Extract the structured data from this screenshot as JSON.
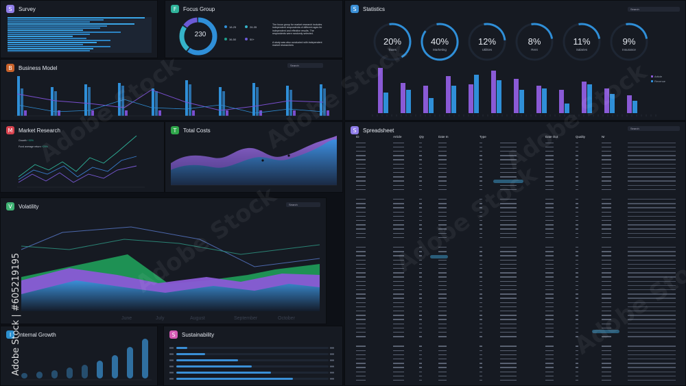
{
  "panels": {
    "survey": {
      "letter": "S",
      "title": "Survey",
      "color": "#8f7de8"
    },
    "focus": {
      "letter": "F",
      "title": "Focus Group",
      "color": "#2fb39a",
      "center_value": "230",
      "legend": [
        "18-25",
        "26-35",
        "36-50",
        "50+"
      ],
      "note1": "The focus group for market research includes independent respondents of different ages for independent and effective results. The respondents were randomly selected.",
      "note2": "A study was also conducted with independent market researchers"
    },
    "business": {
      "letter": "B",
      "title": "Business Model",
      "color": "#c9622a",
      "search": "Search"
    },
    "market": {
      "letter": "M",
      "title": "Market Research",
      "color": "#d9434f",
      "legend": [
        "Growth",
        "Fund average return"
      ],
      "legend_values": [
        "+30%",
        "+25%"
      ]
    },
    "total": {
      "letter": "T",
      "title": "Total Costs",
      "color": "#2fa64a"
    },
    "volatility": {
      "letter": "V",
      "title": "Volatility",
      "color": "#3fb374",
      "search": "Search",
      "months": [
        "June",
        "July",
        "August",
        "September",
        "October"
      ]
    },
    "internal": {
      "letter": "I",
      "title": "Internal Growth",
      "color": "#2b8fcf"
    },
    "sustain": {
      "letter": "S",
      "title": "Sustainability",
      "color": "#d35bb4"
    },
    "statistics": {
      "letter": "S",
      "title": "Statistics",
      "color": "#3a8fd6",
      "search": "Search",
      "legend": [
        "Article",
        "Revenue"
      ]
    },
    "spreadsheet": {
      "letter": "S",
      "title": "Spreadsheet",
      "color": "#8f7de8",
      "search": "Search",
      "columns": [
        "ID",
        "Article",
        "Qty",
        "Date In",
        "Type",
        "",
        "Date Out",
        "Quality",
        "Nr"
      ]
    }
  },
  "stats_rings": [
    {
      "value": "20%",
      "label": "Taxes",
      "pct": 0.2
    },
    {
      "value": "40%",
      "label": "Marketing",
      "pct": 0.4
    },
    {
      "value": "12%",
      "label": "Utilities",
      "pct": 0.12
    },
    {
      "value": "8%",
      "label": "Rent",
      "pct": 0.08
    },
    {
      "value": "11%",
      "label": "Salaries",
      "pct": 0.11
    },
    {
      "value": "9%",
      "label": "Insurance",
      "pct": 0.09
    }
  ],
  "watermark": {
    "vertical": "Adobe Stock | #605219195",
    "text": "Adobe Stock"
  },
  "colors": {
    "purple": "#8a5ad6",
    "blue": "#2f8fd8",
    "green": "#1f9e5a",
    "bg": "#161a22"
  }
}
